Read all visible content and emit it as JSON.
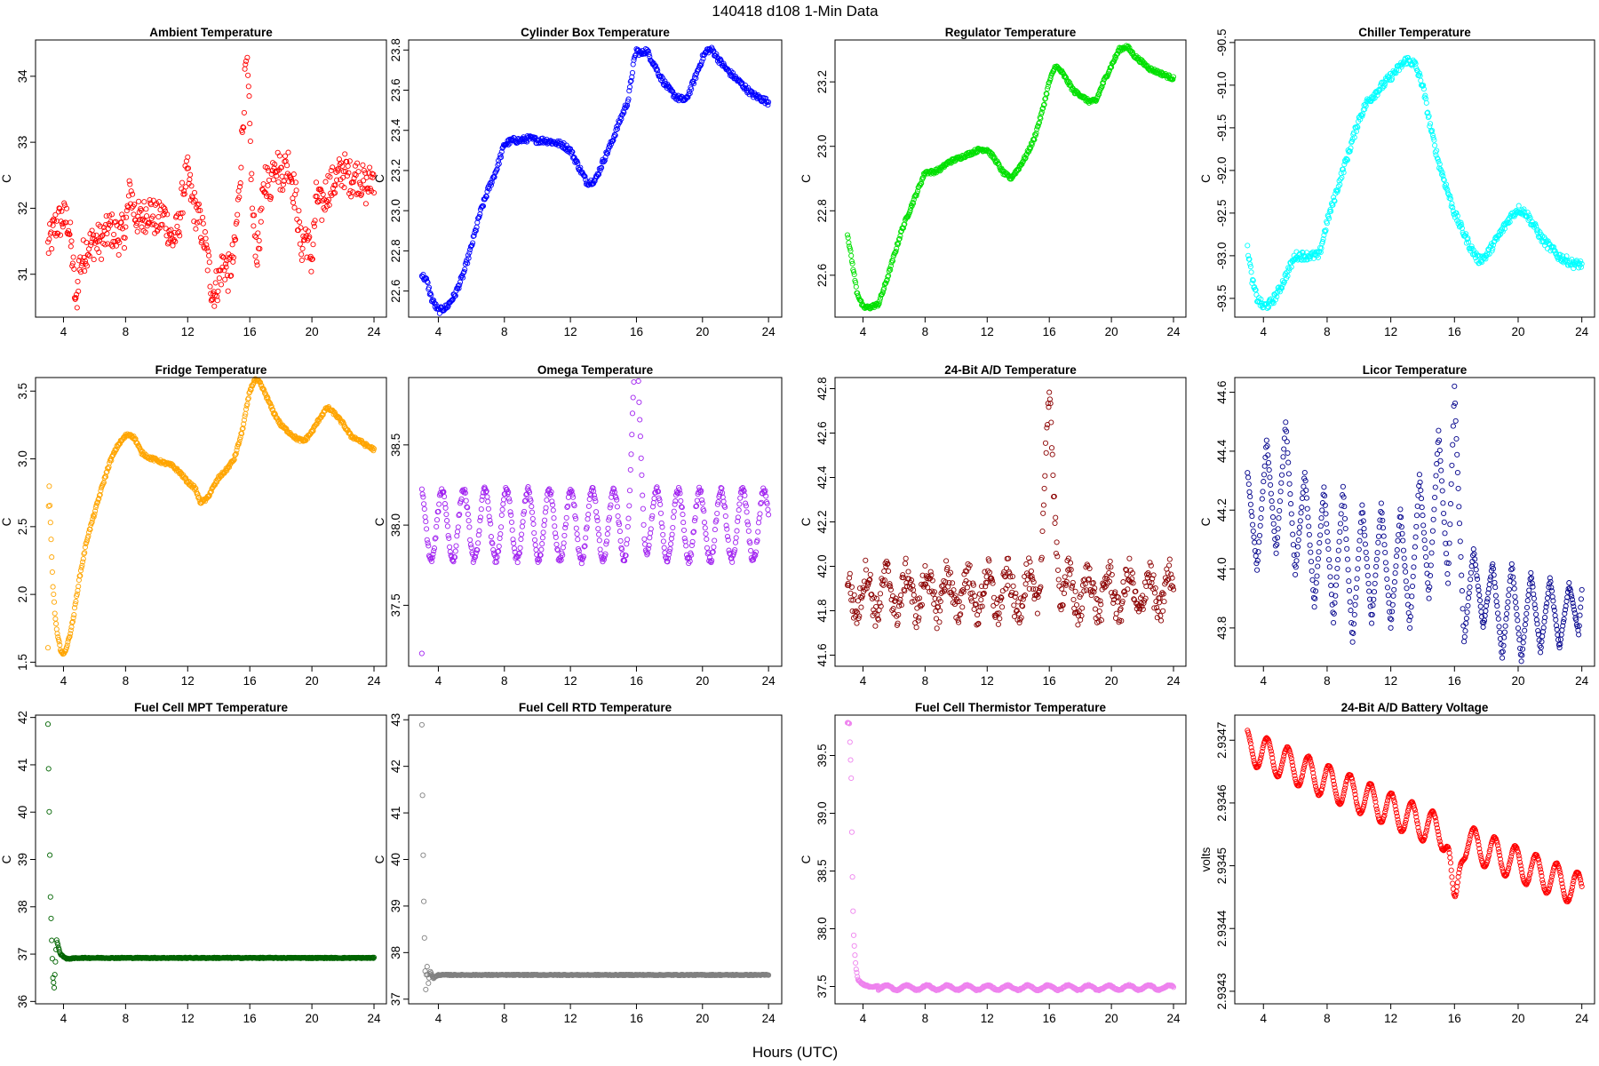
{
  "figure": {
    "title": "140418    d108    1-Min Data",
    "xlabel": "Hours (UTC)"
  },
  "chart_data": [
    {
      "type": "scatter",
      "title": "Ambient Temperature",
      "ylabel": "C",
      "color": "#ff0000",
      "xlim": [
        2.2,
        24.8
      ],
      "ylim": [
        30.35,
        34.55
      ],
      "xticks": [
        4,
        8,
        12,
        16,
        20,
        24
      ],
      "yticks": [
        31,
        32,
        33,
        34
      ],
      "ytick_labels": [
        "31",
        "32",
        "33",
        "34"
      ],
      "x": [
        3,
        3.5,
        4,
        4.3,
        4.6,
        4.8,
        5,
        5.5,
        6,
        6.5,
        7,
        7.5,
        8,
        8.3,
        8.6,
        9,
        9.5,
        10,
        10.5,
        11,
        11.4,
        11.8,
        12,
        12.3,
        12.6,
        13,
        13.3,
        13.6,
        14,
        14.3,
        14.6,
        15,
        15.3,
        15.6,
        15.8,
        16,
        16.2,
        16.5,
        17,
        17.3,
        17.6,
        18,
        18.5,
        19,
        19.3,
        19.6,
        20,
        20.3,
        20.6,
        21,
        21.5,
        22,
        22.5,
        23,
        23.5,
        24
      ],
      "y": [
        31.4,
        31.75,
        31.85,
        31.8,
        31.2,
        30.45,
        31.1,
        31.4,
        31.5,
        31.5,
        31.7,
        31.55,
        31.7,
        32.3,
        31.9,
        31.8,
        32.0,
        31.8,
        31.9,
        31.5,
        31.7,
        32.4,
        32.5,
        32.1,
        31.9,
        31.6,
        31.2,
        30.7,
        30.9,
        31.2,
        31.0,
        31.3,
        32.2,
        33.5,
        34.35,
        33.2,
        31.8,
        31.3,
        32.5,
        32.3,
        32.8,
        32.5,
        32.7,
        32.1,
        31.4,
        31.6,
        31.2,
        32.2,
        32.0,
        32.3,
        32.4,
        32.6,
        32.45,
        32.5,
        32.3,
        32.5
      ],
      "spread": 0.28
    },
    {
      "type": "scatter",
      "title": "Cylinder Box Temperature",
      "ylabel": "C",
      "color": "#0000ff",
      "xlim": [
        2.2,
        24.8
      ],
      "ylim": [
        22.47,
        23.85
      ],
      "xticks": [
        4,
        8,
        12,
        16,
        20,
        24
      ],
      "yticks": [
        22.6,
        22.8,
        23.0,
        23.2,
        23.4,
        23.6,
        23.8
      ],
      "ytick_labels": [
        "22.6",
        "22.8",
        "23.0",
        "23.2",
        "23.4",
        "23.6",
        "23.8"
      ],
      "x": [
        3,
        3.3,
        3.6,
        4,
        4.5,
        5,
        5.5,
        6,
        6.5,
        7,
        7.5,
        8,
        8.5,
        9,
        9.5,
        10,
        10.5,
        11,
        11.5,
        12,
        12.5,
        13,
        13.5,
        14,
        14.5,
        15,
        15.5,
        15.8,
        16,
        16.3,
        16.6,
        17,
        17.5,
        18,
        18.5,
        19,
        19.5,
        20,
        20.3,
        20.6,
        21,
        21.5,
        22,
        22.5,
        23,
        23.5,
        24
      ],
      "y": [
        22.68,
        22.65,
        22.56,
        22.5,
        22.52,
        22.58,
        22.68,
        22.82,
        22.98,
        23.1,
        23.2,
        23.33,
        23.35,
        23.35,
        23.36,
        23.35,
        23.35,
        23.34,
        23.33,
        23.3,
        23.22,
        23.14,
        23.15,
        23.25,
        23.34,
        23.45,
        23.55,
        23.72,
        23.8,
        23.78,
        23.8,
        23.74,
        23.66,
        23.6,
        23.56,
        23.55,
        23.65,
        23.76,
        23.8,
        23.8,
        23.75,
        23.7,
        23.66,
        23.62,
        23.58,
        23.56,
        23.54
      ],
      "spread": 0.015
    },
    {
      "type": "scatter",
      "title": "Regulator Temperature",
      "ylabel": "C",
      "color": "#00e000",
      "xlim": [
        2.2,
        24.8
      ],
      "ylim": [
        22.47,
        23.33
      ],
      "xticks": [
        4,
        8,
        12,
        16,
        20,
        24
      ],
      "yticks": [
        22.6,
        22.8,
        23.0,
        23.2
      ],
      "ytick_labels": [
        "22.6",
        "22.8",
        "23.0",
        "23.2"
      ],
      "x": [
        3,
        3.3,
        3.6,
        4,
        4.4,
        5,
        5.5,
        6,
        6.5,
        7,
        7.5,
        8,
        8.5,
        9,
        9.5,
        10,
        10.5,
        11,
        11.5,
        12,
        12.5,
        13,
        13.5,
        14,
        14.5,
        15,
        15.5,
        16,
        16.4,
        16.8,
        17.2,
        17.6,
        18,
        18.5,
        19,
        19.5,
        20,
        20.5,
        21,
        21.5,
        22,
        22.5,
        23,
        23.5,
        24
      ],
      "y": [
        22.73,
        22.64,
        22.55,
        22.5,
        22.5,
        22.51,
        22.58,
        22.66,
        22.74,
        22.8,
        22.86,
        22.92,
        22.92,
        22.93,
        22.95,
        22.96,
        22.97,
        22.98,
        22.99,
        22.99,
        22.96,
        22.92,
        22.9,
        22.93,
        22.97,
        23.02,
        23.1,
        23.2,
        23.25,
        23.23,
        23.2,
        23.17,
        23.16,
        23.14,
        23.14,
        23.2,
        23.25,
        23.3,
        23.31,
        23.28,
        23.26,
        23.24,
        23.23,
        23.22,
        23.21
      ],
      "spread": 0.006
    },
    {
      "type": "scatter",
      "title": "Chiller Temperature",
      "ylabel": "C",
      "color": "#00ffff",
      "xlim": [
        2.2,
        24.8
      ],
      "ylim": [
        -93.72,
        -90.47
      ],
      "xticks": [
        4,
        8,
        12,
        16,
        20,
        24
      ],
      "yticks": [
        -93.5,
        -93.0,
        -92.5,
        -92.0,
        -91.5,
        -91.0,
        -90.5
      ],
      "ytick_labels": [
        "-93.5",
        "-93.0",
        "-92.5",
        "-92.0",
        "-91.5",
        "-91.0",
        "-90.5"
      ],
      "x": [
        3,
        3.3,
        3.6,
        4,
        4.5,
        5,
        5.5,
        6,
        6.5,
        7,
        7.5,
        8,
        8.5,
        9,
        9.5,
        10,
        10.5,
        11,
        11.5,
        12,
        12.5,
        13,
        13.5,
        14,
        14.5,
        15,
        15.5,
        16,
        16.5,
        17,
        17.5,
        18,
        18.5,
        19,
        19.5,
        20,
        20.5,
        21,
        21.5,
        22,
        22.5,
        23,
        23.5,
        24
      ],
      "y": [
        -92.9,
        -93.3,
        -93.5,
        -93.6,
        -93.55,
        -93.4,
        -93.2,
        -93.0,
        -93.0,
        -93.0,
        -93.0,
        -92.6,
        -92.3,
        -92.0,
        -91.7,
        -91.4,
        -91.2,
        -91.1,
        -91.0,
        -90.9,
        -90.8,
        -90.7,
        -90.75,
        -91.0,
        -91.5,
        -91.9,
        -92.2,
        -92.5,
        -92.7,
        -92.9,
        -93.05,
        -93.0,
        -92.85,
        -92.7,
        -92.55,
        -92.45,
        -92.5,
        -92.65,
        -92.8,
        -92.9,
        -93.0,
        -93.05,
        -93.1,
        -93.1
      ],
      "spread": 0.05
    },
    {
      "type": "scatter",
      "title": "Fridge Temperature",
      "ylabel": "C",
      "color": "#ffa500",
      "xlim": [
        2.2,
        24.8
      ],
      "ylim": [
        1.47,
        3.6
      ],
      "xticks": [
        4,
        8,
        12,
        16,
        20,
        24
      ],
      "yticks": [
        1.5,
        2.0,
        2.5,
        3.0,
        3.5
      ],
      "ytick_labels": [
        "1.5",
        "2.0",
        "2.5",
        "3.0",
        "3.5"
      ],
      "x": [
        3,
        3.05,
        3.12,
        3.2,
        3.3,
        3.45,
        3.6,
        3.8,
        4,
        4.3,
        4.6,
        5,
        5.5,
        6,
        6.5,
        7,
        7.5,
        8,
        8.3,
        8.6,
        9,
        9.5,
        10,
        10.5,
        11,
        11.5,
        12,
        12.5,
        12.8,
        13.2,
        13.6,
        14,
        14.5,
        15,
        15.5,
        16,
        16.3,
        16.6,
        17,
        17.5,
        18,
        18.5,
        19,
        19.5,
        20,
        20.5,
        21,
        21.5,
        22,
        22.5,
        23,
        23.5,
        24
      ],
      "y": [
        1.6,
        2.9,
        2.65,
        2.4,
        2.1,
        1.85,
        1.7,
        1.6,
        1.55,
        1.65,
        1.8,
        2.1,
        2.4,
        2.6,
        2.8,
        2.98,
        3.1,
        3.17,
        3.18,
        3.15,
        3.05,
        3.01,
        2.99,
        2.97,
        2.95,
        2.9,
        2.83,
        2.78,
        2.68,
        2.7,
        2.78,
        2.86,
        2.92,
        3.0,
        3.2,
        3.5,
        3.58,
        3.57,
        3.48,
        3.35,
        3.25,
        3.2,
        3.15,
        3.13,
        3.2,
        3.3,
        3.38,
        3.33,
        3.26,
        3.17,
        3.14,
        3.1,
        3.07
      ],
      "spread": 0.012
    },
    {
      "type": "scatter",
      "title": "Omega Temperature",
      "ylabel": "C",
      "color": "#a020f0",
      "xlim": [
        2.2,
        24.8
      ],
      "ylim": [
        37.12,
        38.92
      ],
      "xticks": [
        4,
        8,
        12,
        16,
        20,
        24
      ],
      "yticks": [
        37.5,
        38.0,
        38.5
      ],
      "ytick_labels": [
        "37.5",
        "38.0",
        "38.5"
      ],
      "baseline": 38.0,
      "oscillation": {
        "amplitude": 0.22,
        "period_hours": 1.3
      },
      "spike": {
        "center": 16.0,
        "width": 0.35,
        "height": 0.85
      },
      "outlier": [
        3.0,
        37.2
      ],
      "spread": 0.02
    },
    {
      "type": "scatter",
      "title": "24-Bit A/D Temperature",
      "ylabel": "C",
      "color": "#8b0000",
      "xlim": [
        2.2,
        24.8
      ],
      "ylim": [
        41.55,
        42.85
      ],
      "xticks": [
        4,
        8,
        12,
        16,
        20,
        24
      ],
      "yticks": [
        41.6,
        41.8,
        42.0,
        42.2,
        42.4,
        42.6,
        42.8
      ],
      "ytick_labels": [
        "41.6",
        "41.8",
        "42.0",
        "42.2",
        "42.4",
        "42.6",
        "42.8"
      ],
      "baseline": 41.88,
      "oscillation": {
        "amplitude": 0.09,
        "period_hours": 1.3
      },
      "spike": {
        "center": 16.0,
        "width": 0.45,
        "height": 0.75
      },
      "spread": 0.07
    },
    {
      "type": "scatter",
      "title": "Licor Temperature",
      "ylabel": "C",
      "color": "#00008b",
      "xlim": [
        2.2,
        24.8
      ],
      "ylim": [
        43.67,
        44.65
      ],
      "xticks": [
        4,
        8,
        12,
        16,
        20,
        24
      ],
      "yticks": [
        43.8,
        44.0,
        44.2,
        44.4,
        44.6
      ],
      "ytick_labels": [
        "43.8",
        "44.0",
        "44.2",
        "44.4",
        "44.6"
      ],
      "x": [
        3,
        3.6,
        4.2,
        4.8,
        5.4,
        6.0,
        6.6,
        7.2,
        7.8,
        8.4,
        9.0,
        9.6,
        10.2,
        10.8,
        11.4,
        12.0,
        12.6,
        13.2,
        13.8,
        14.4,
        15.0,
        15.6,
        16.0,
        16.6,
        17.2,
        17.8,
        18.4,
        19.0,
        19.6,
        20.2,
        20.8,
        21.4,
        22.0,
        22.6,
        23.2,
        23.8,
        24
      ],
      "y": [
        44.33,
        44.0,
        44.44,
        44.05,
        44.5,
        43.98,
        44.33,
        43.87,
        44.28,
        43.82,
        44.28,
        43.75,
        44.22,
        43.82,
        44.22,
        43.8,
        44.2,
        43.8,
        44.32,
        43.9,
        44.47,
        43.95,
        44.62,
        43.75,
        44.07,
        43.8,
        44.02,
        43.7,
        44.02,
        43.69,
        43.99,
        43.72,
        43.97,
        43.73,
        43.95,
        43.78,
        43.93
      ],
      "spread": 0.004
    },
    {
      "type": "scatter",
      "title": "Fuel Cell MPT Temperature",
      "ylabel": "C",
      "color": "#006400",
      "xlim": [
        2.2,
        24.8
      ],
      "ylim": [
        35.95,
        42.05
      ],
      "xticks": [
        4,
        8,
        12,
        16,
        20,
        24
      ],
      "yticks": [
        36,
        37,
        38,
        39,
        40,
        41,
        42
      ],
      "ytick_labels": [
        "36",
        "37",
        "38",
        "39",
        "40",
        "41",
        "42"
      ],
      "x": [
        3,
        3.08,
        3.16,
        3.24,
        3.32,
        3.4,
        3.55,
        3.8,
        4.2,
        5,
        8,
        12,
        16,
        20,
        24
      ],
      "y": [
        41.85,
        40.0,
        38.2,
        37.3,
        36.5,
        36.3,
        37.3,
        37.0,
        36.9,
        36.92,
        36.92,
        36.92,
        36.92,
        36.92,
        36.92
      ],
      "spread": 0.01
    },
    {
      "type": "scatter",
      "title": "Fuel Cell RTD Temperature",
      "ylabel": "C",
      "color": "#808080",
      "xlim": [
        2.2,
        24.8
      ],
      "ylim": [
        36.9,
        43.1
      ],
      "xticks": [
        4,
        8,
        12,
        16,
        20,
        24
      ],
      "yticks": [
        37,
        38,
        39,
        40,
        41,
        42,
        43
      ],
      "ytick_labels": [
        "37",
        "38",
        "39",
        "40",
        "41",
        "42",
        "43"
      ],
      "x": [
        3,
        3.05,
        3.1,
        3.15,
        3.2,
        3.25,
        3.3,
        3.4,
        3.5,
        3.7,
        4,
        5,
        8,
        12,
        16,
        20,
        24
      ],
      "y": [
        42.9,
        41.0,
        39.5,
        38.5,
        37.6,
        37.1,
        37.8,
        37.35,
        37.6,
        37.45,
        37.52,
        37.52,
        37.52,
        37.52,
        37.52,
        37.52,
        37.52
      ],
      "spread": 0.01
    },
    {
      "type": "scatter",
      "title": "Fuel Cell Thermistor Temperature",
      "ylabel": "C",
      "color": "#ee82ee",
      "xlim": [
        2.2,
        24.8
      ],
      "ylim": [
        37.35,
        39.85
      ],
      "xticks": [
        4,
        8,
        12,
        16,
        20,
        24
      ],
      "yticks": [
        37.5,
        38.0,
        38.5,
        39.0,
        39.5
      ],
      "ytick_labels": [
        "37.5",
        "38.0",
        "38.5",
        "39.0",
        "39.5"
      ],
      "x": [
        3,
        3.12,
        3.24,
        3.3,
        3.38,
        3.46,
        3.55,
        3.7,
        4.0,
        4.4,
        5
      ],
      "y": [
        39.78,
        39.78,
        39.3,
        38.6,
        38.0,
        37.8,
        37.65,
        37.55,
        37.52,
        37.5,
        37.5
      ],
      "baseline": 37.49,
      "oscillation": {
        "amplitude": 0.02,
        "period_hours": 1.3
      },
      "spread": 0.006
    },
    {
      "type": "scatter",
      "title": "24-Bit A/D Battery Voltage",
      "ylabel": "volts",
      "color": "#ff0000",
      "xlim": [
        2.2,
        24.8
      ],
      "ylim": [
        2.93428,
        2.93474
      ],
      "xticks": [
        4,
        8,
        12,
        16,
        20,
        24
      ],
      "yticks": [
        2.9343,
        2.9344,
        2.9345,
        2.9346,
        2.9347
      ],
      "ytick_labels": [
        "2.9343",
        "2.9344",
        "2.9345",
        "2.9346",
        "2.9347"
      ],
      "trend": {
        "x": [
          3,
          15.5,
          16.5,
          24
        ],
        "y": [
          2.93469,
          2.93455,
          2.93454,
          2.93446
        ]
      },
      "oscillation": {
        "amplitude": 2.7e-05,
        "period_hours": 1.3
      },
      "dip": {
        "center": 16.0,
        "width": 0.3,
        "depth": 0.000118
      },
      "spread": 8e-07
    }
  ]
}
